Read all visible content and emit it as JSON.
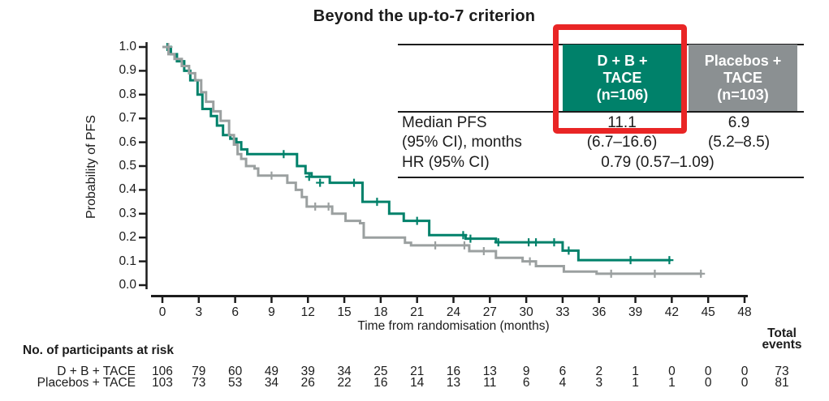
{
  "title": "Beyond the up-to-7 criterion",
  "colors": {
    "green": "#00816a",
    "gray_line": "#9ba0a0",
    "gray_header": "#8b9092",
    "red_box": "#e92525",
    "axis": "#1c1c1c"
  },
  "chart_data": {
    "type": "line",
    "subtype": "kaplan-meier-step",
    "title": "Beyond the up-to-7 criterion",
    "xlabel": "Time from randomisation (months)",
    "ylabel": "Probability of PFS",
    "xlim": [
      0,
      48
    ],
    "ylim": [
      0.0,
      1.0
    ],
    "grid": false,
    "legend_position": "none",
    "x_ticks": [
      0,
      3,
      6,
      9,
      12,
      15,
      18,
      21,
      24,
      27,
      30,
      33,
      36,
      39,
      42,
      45,
      48
    ],
    "y_tick_labels": [
      "1.0",
      "0.9",
      "0.8",
      "0.7",
      "0.6",
      "0.5",
      "0.4",
      "0.3",
      "0.2",
      "0.1",
      "0.0"
    ],
    "y_tick_values": [
      1.0,
      0.9,
      0.8,
      0.7,
      0.6,
      0.5,
      0.4,
      0.3,
      0.2,
      0.1,
      0.0
    ],
    "series": [
      {
        "name": "D + B + TACE",
        "color_key": "green",
        "steps": [
          [
            0,
            1.0
          ],
          [
            0.7,
            0.97
          ],
          [
            1.2,
            0.94
          ],
          [
            1.8,
            0.9
          ],
          [
            2.3,
            0.86
          ],
          [
            2.9,
            0.8
          ],
          [
            3.3,
            0.74
          ],
          [
            4.0,
            0.71
          ],
          [
            4.5,
            0.67
          ],
          [
            5.0,
            0.63
          ],
          [
            5.6,
            0.615
          ],
          [
            6.1,
            0.6
          ],
          [
            6.5,
            0.57
          ],
          [
            7.0,
            0.55
          ],
          [
            11.1,
            0.5
          ],
          [
            11.8,
            0.47
          ],
          [
            12.3,
            0.455
          ],
          [
            13.8,
            0.43
          ],
          [
            16.5,
            0.35
          ],
          [
            18.7,
            0.3
          ],
          [
            19.9,
            0.27
          ],
          [
            22.0,
            0.21
          ],
          [
            25.0,
            0.195
          ],
          [
            27.5,
            0.18
          ],
          [
            33.0,
            0.145
          ],
          [
            34.3,
            0.105
          ]
        ],
        "end_month": 41.9,
        "censors": [
          [
            0.4,
            1.0
          ],
          [
            10.0,
            0.55
          ],
          [
            12.1,
            0.455
          ],
          [
            13.0,
            0.43
          ],
          [
            15.8,
            0.43
          ],
          [
            17.7,
            0.35
          ],
          [
            21.0,
            0.27
          ],
          [
            24.8,
            0.21
          ],
          [
            25.4,
            0.195
          ],
          [
            27.7,
            0.18
          ],
          [
            30.2,
            0.18
          ],
          [
            30.8,
            0.18
          ],
          [
            32.3,
            0.18
          ],
          [
            33.5,
            0.145
          ],
          [
            38.6,
            0.105
          ],
          [
            41.8,
            0.105
          ]
        ]
      },
      {
        "name": "Placebos + TACE",
        "color_key": "gray_line",
        "steps": [
          [
            0,
            1.0
          ],
          [
            0.5,
            0.97
          ],
          [
            1.0,
            0.95
          ],
          [
            1.6,
            0.92
          ],
          [
            2.2,
            0.89
          ],
          [
            2.7,
            0.86
          ],
          [
            3.2,
            0.81
          ],
          [
            3.6,
            0.77
          ],
          [
            4.2,
            0.73
          ],
          [
            4.8,
            0.69
          ],
          [
            5.5,
            0.63
          ],
          [
            5.9,
            0.59
          ],
          [
            6.2,
            0.55
          ],
          [
            6.5,
            0.53
          ],
          [
            6.9,
            0.5
          ],
          [
            7.6,
            0.49
          ],
          [
            7.9,
            0.46
          ],
          [
            10.3,
            0.43
          ],
          [
            11.0,
            0.4
          ],
          [
            11.5,
            0.37
          ],
          [
            11.9,
            0.33
          ],
          [
            14.0,
            0.3
          ],
          [
            15.1,
            0.27
          ],
          [
            16.3,
            0.26
          ],
          [
            16.6,
            0.2
          ],
          [
            20.0,
            0.178
          ],
          [
            20.5,
            0.167
          ],
          [
            25.3,
            0.143
          ],
          [
            27.5,
            0.115
          ],
          [
            29.7,
            0.1
          ],
          [
            30.8,
            0.08
          ],
          [
            33.1,
            0.057
          ],
          [
            35.8,
            0.048
          ]
        ],
        "end_month": 44.5,
        "censors": [
          [
            0.5,
            1.0
          ],
          [
            9.0,
            0.46
          ],
          [
            12.6,
            0.33
          ],
          [
            13.7,
            0.33
          ],
          [
            22.5,
            0.167
          ],
          [
            24.9,
            0.167
          ],
          [
            26.5,
            0.143
          ],
          [
            30.3,
            0.1
          ],
          [
            37.0,
            0.048
          ],
          [
            40.6,
            0.048
          ],
          [
            44.4,
            0.048
          ]
        ]
      }
    ]
  },
  "stats_table": {
    "col_dab": {
      "lines": [
        "D + B +",
        "TACE",
        "(n=106)"
      ]
    },
    "col_placebo": {
      "lines": [
        "Placebos +",
        "TACE",
        "(n=103)"
      ]
    },
    "median_label_line1": "Median PFS",
    "median_label_line2": "(95% CI), months",
    "hr_label": "HR (95% CI)",
    "dab_median": "11.1",
    "dab_ci": "(6.7–16.6)",
    "placebo_median": "6.9",
    "placebo_ci": "(5.2–8.5)",
    "hr_value": "0.79 (0.57–1.09)"
  },
  "at_risk": {
    "header": "No. of participants at risk",
    "total_header_line1": "Total",
    "total_header_line2": "events",
    "rows": [
      {
        "label": "D + B + TACE",
        "counts": [
          106,
          79,
          60,
          49,
          39,
          34,
          25,
          21,
          16,
          13,
          9,
          6,
          2,
          1,
          0,
          0,
          0
        ],
        "total_events": "73"
      },
      {
        "label": "Placebos + TACE",
        "counts": [
          103,
          73,
          53,
          34,
          26,
          22,
          16,
          14,
          13,
          11,
          6,
          4,
          3,
          1,
          1,
          0,
          0
        ],
        "total_events": "81"
      }
    ]
  }
}
